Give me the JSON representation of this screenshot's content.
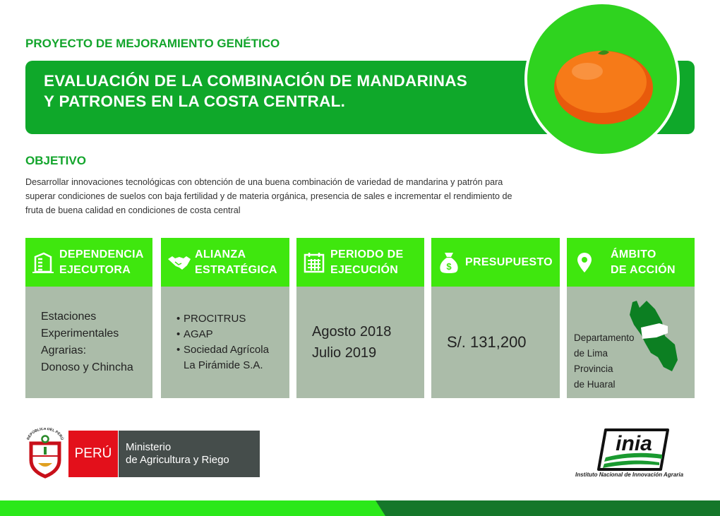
{
  "header": {
    "kicker": "PROYECTO DE MEJORAMIENTO GENÉTICO",
    "title_line1": "EVALUACIÓN DE LA COMBINACIÓN DE MANDARINAS",
    "title_line2": "Y PATRONES EN LA COSTA CENTRAL."
  },
  "objective": {
    "heading": "OBJETIVO",
    "text": "Desarrollar innovaciones tecnológicas con obtención de una buena combinación de variedad de mandarina y patrón para superar condiciones de suelos con baja fertilidad y de materia orgánica, presencia de sales e incrementar el rendimiento de fruta de buena calidad en condiciones de costa central"
  },
  "cards": [
    {
      "icon": "building-icon",
      "title1": "DEPENDENCIA",
      "title2": "EJECUTORA",
      "lines": [
        "Estaciones",
        "Experimentales",
        "Agrarias:",
        "Donoso y Chincha"
      ]
    },
    {
      "icon": "handshake-icon",
      "title1": "ALIANZA",
      "title2": "ESTRATÉGICA",
      "items": [
        "PROCITRUS",
        "AGAP",
        "Sociedad Agrícola",
        "La Pirámide S.A."
      ]
    },
    {
      "icon": "calendar-icon",
      "title1": "PERIODO DE",
      "title2": "EJECUCIÓN",
      "lines": [
        "Agosto 2018",
        "Julio 2019"
      ]
    },
    {
      "icon": "money-bag-icon",
      "title1": "PRESUPUESTO",
      "value": "S/. 131,200"
    },
    {
      "icon": "location-pin-icon",
      "title1": "ÁMBITO",
      "title2": "DE ACCIÓN",
      "lines": [
        "Departamento",
        "de Lima",
        "Provincia",
        "de Huaral"
      ]
    }
  ],
  "footer": {
    "peru": "PERÚ",
    "ministry1": "Ministerio",
    "ministry2": "de Agricultura y Riego",
    "inia_logo": "inia",
    "inia_caption": "Instituto Nacional de Innovación Agraria",
    "shield_text": "REPÚBLICA DEL PERÚ"
  },
  "colors": {
    "dark_green": "#0fa82a",
    "bright_green": "#3fe70e",
    "card_body": "#abbca9",
    "red": "#e3101b",
    "orange": "#f26a10"
  }
}
